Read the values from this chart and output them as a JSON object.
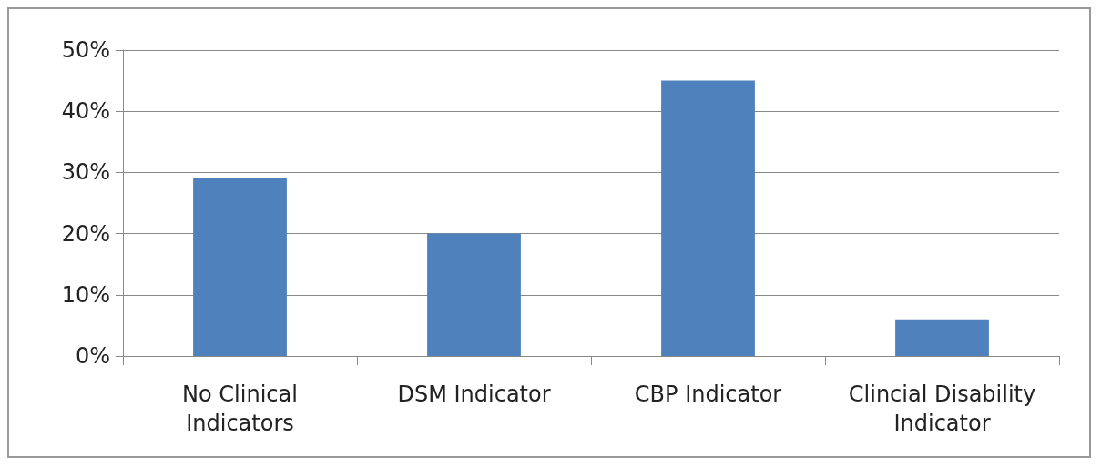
{
  "chart_data": {
    "type": "bar",
    "categories": [
      "No Clinical\nIndicators",
      "DSM Indicator",
      "CBP Indicator",
      "Clincial Disability\nIndicator"
    ],
    "values": [
      29,
      20,
      45,
      6
    ],
    "color": "#4f81bd",
    "ylim": [
      0,
      50
    ],
    "yticks": [
      {
        "value": 0,
        "label": "0%"
      },
      {
        "value": 10,
        "label": "10%"
      },
      {
        "value": 20,
        "label": "20%"
      },
      {
        "value": 30,
        "label": "30%"
      },
      {
        "value": 40,
        "label": "40%"
      },
      {
        "value": 50,
        "label": "50%"
      }
    ],
    "grid": "y"
  }
}
